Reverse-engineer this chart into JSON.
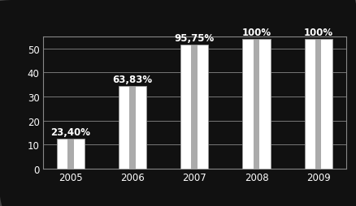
{
  "categories": [
    "2005",
    "2006",
    "2007",
    "2008",
    "2009"
  ],
  "values": [
    12.636,
    34.468,
    51.705,
    54.0,
    54.0
  ],
  "max_value": 54.0,
  "labels": [
    "23,40%",
    "63,83%",
    "95,75%",
    "100%",
    "100%"
  ],
  "bar_color": "#ffffff",
  "bar_edge_color": "#999999",
  "bar_shadow_color": "#aaaaaa",
  "background_color": "#111111",
  "plot_bg_color": "#111111",
  "text_color": "#ffffff",
  "grid_color": "#888888",
  "ylim": [
    0,
    55
  ],
  "yticks": [
    0,
    10,
    20,
    30,
    40,
    50
  ],
  "label_fontsize": 8.5,
  "tick_fontsize": 8.5,
  "bar_width": 0.45
}
